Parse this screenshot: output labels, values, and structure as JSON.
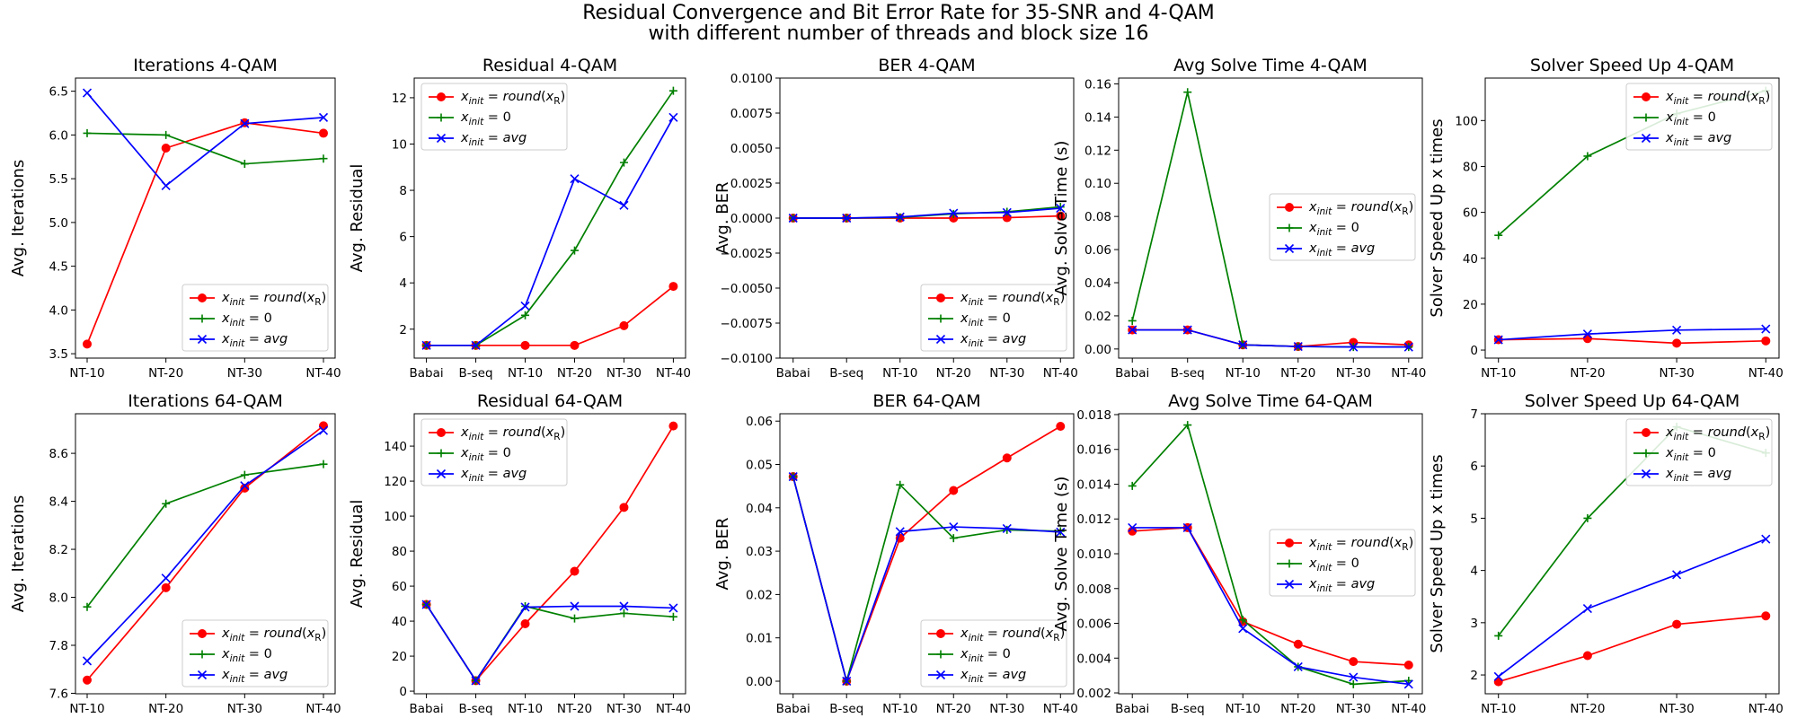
{
  "figure": {
    "title_line1": "Residual Convergence and Bit Error Rate for 35-SNR and 4-QAM",
    "title_line2": "with different number of threads and block size 16"
  },
  "colors": {
    "red": "#ff0000",
    "green": "#008000",
    "blue": "#0000ff"
  },
  "legend_labels": {
    "round": "x_init = round(x_R)",
    "zero": "x_init = 0",
    "avg": "x_init = avg"
  },
  "chart_data": [
    {
      "type": "line",
      "title": "Iterations 4-QAM",
      "ylabel": "Avg. Iterations",
      "xlabel": "",
      "categories": [
        "NT-10",
        "NT-20",
        "NT-30",
        "NT-40"
      ],
      "ylim": [
        3.45,
        6.65
      ],
      "yticks": [
        3.5,
        4.0,
        4.5,
        5.0,
        5.5,
        6.0,
        6.5
      ],
      "ytick_labels": [
        "3.5",
        "4.0",
        "4.5",
        "5.0",
        "5.5",
        "6.0",
        "6.5"
      ],
      "legend": "lower-right",
      "series": [
        {
          "key": "round",
          "values": [
            3.61,
            5.85,
            6.14,
            6.02
          ]
        },
        {
          "key": "zero",
          "values": [
            6.02,
            6.0,
            5.67,
            5.73
          ]
        },
        {
          "key": "avg",
          "values": [
            6.48,
            5.42,
            6.13,
            6.2
          ]
        }
      ]
    },
    {
      "type": "line",
      "title": "Residual 4-QAM",
      "ylabel": "Avg. Residual",
      "xlabel": "",
      "categories": [
        "Babai",
        "B-seq",
        "NT-10",
        "NT-20",
        "NT-30",
        "NT-40"
      ],
      "ylim": [
        0.75,
        12.85
      ],
      "yticks": [
        2,
        4,
        6,
        8,
        10,
        12
      ],
      "ytick_labels": [
        "2",
        "4",
        "6",
        "8",
        "10",
        "12"
      ],
      "legend": "upper-left",
      "series": [
        {
          "key": "round",
          "values": [
            1.3,
            1.3,
            1.3,
            1.3,
            2.15,
            3.85
          ]
        },
        {
          "key": "zero",
          "values": [
            1.3,
            1.3,
            2.6,
            5.4,
            9.2,
            12.3
          ]
        },
        {
          "key": "avg",
          "values": [
            1.3,
            1.3,
            3.0,
            8.5,
            7.35,
            11.15
          ]
        }
      ]
    },
    {
      "type": "line",
      "title": "BER 4-QAM",
      "ylabel": "Avg. BER",
      "xlabel": "",
      "categories": [
        "Babai",
        "B-seq",
        "NT-10",
        "NT-20",
        "NT-30",
        "NT-40"
      ],
      "ylim": [
        -0.01,
        0.01
      ],
      "yticks": [
        -0.01,
        -0.0075,
        -0.005,
        -0.0025,
        0.0,
        0.0025,
        0.005,
        0.0075,
        0.01
      ],
      "ytick_labels": [
        "−0.0100",
        "−0.0075",
        "−0.0050",
        "−0.0025",
        "0.0000",
        "0.0025",
        "0.0050",
        "0.0075",
        "0.0100"
      ],
      "legend": "lower-right",
      "series": [
        {
          "key": "round",
          "values": [
            0.0,
            0.0,
            0.0,
            0.0,
            3e-05,
            0.00015
          ]
        },
        {
          "key": "zero",
          "values": [
            0.0,
            0.0,
            5e-05,
            0.0003,
            0.00045,
            0.0008
          ]
        },
        {
          "key": "avg",
          "values": [
            0.0,
            0.0,
            8e-05,
            0.00035,
            0.0004,
            0.0007
          ]
        }
      ]
    },
    {
      "type": "line",
      "title": "Avg Solve Time 4-QAM",
      "ylabel": "Avg. Solve Time (s)",
      "xlabel": "",
      "categories": [
        "Babai",
        "B-seq",
        "NT-10",
        "NT-20",
        "NT-30",
        "NT-40"
      ],
      "ylim": [
        -0.0055,
        0.1635
      ],
      "yticks": [
        0.0,
        0.02,
        0.04,
        0.06,
        0.08,
        0.1,
        0.12,
        0.14,
        0.16
      ],
      "ytick_labels": [
        "0.00",
        "0.02",
        "0.04",
        "0.06",
        "0.08",
        "0.10",
        "0.12",
        "0.14",
        "0.16"
      ],
      "legend": "center-right",
      "series": [
        {
          "key": "round",
          "values": [
            0.0115,
            0.0115,
            0.0025,
            0.0015,
            0.004,
            0.0025
          ]
        },
        {
          "key": "zero",
          "values": [
            0.017,
            0.155,
            0.0025,
            0.0015,
            0.0012,
            0.0012
          ]
        },
        {
          "key": "avg",
          "values": [
            0.0115,
            0.0115,
            0.0025,
            0.0015,
            0.0012,
            0.0012
          ]
        }
      ]
    },
    {
      "type": "line",
      "title": "Solver Speed Up 4-QAM",
      "ylabel": "Solver Speed Up x times",
      "xlabel": "",
      "categories": [
        "NT-10",
        "NT-20",
        "NT-30",
        "NT-40"
      ],
      "ylim": [
        -3.5,
        118.5
      ],
      "yticks": [
        0,
        20,
        40,
        60,
        80,
        100
      ],
      "ytick_labels": [
        "0",
        "20",
        "40",
        "60",
        "80",
        "100"
      ],
      "legend": "upper-right",
      "series": [
        {
          "key": "round",
          "values": [
            4.5,
            5.0,
            3.0,
            4.0
          ]
        },
        {
          "key": "zero",
          "values": [
            50,
            84.5,
            103,
            113
          ]
        },
        {
          "key": "avg",
          "values": [
            4.5,
            7.0,
            8.7,
            9.2
          ]
        }
      ]
    },
    {
      "type": "line",
      "title": "Iterations 64-QAM",
      "ylabel": "Avg. Iterations",
      "xlabel": "",
      "categories": [
        "NT-10",
        "NT-20",
        "NT-30",
        "NT-40"
      ],
      "ylim": [
        7.598,
        8.765
      ],
      "yticks": [
        7.6,
        7.8,
        8.0,
        8.2,
        8.4,
        8.6
      ],
      "ytick_labels": [
        "7.6",
        "7.8",
        "8.0",
        "8.2",
        "8.4",
        "8.6"
      ],
      "legend": "lower-right",
      "series": [
        {
          "key": "round",
          "values": [
            7.655,
            8.04,
            8.455,
            8.715
          ]
        },
        {
          "key": "zero",
          "values": [
            7.96,
            8.39,
            8.51,
            8.555
          ]
        },
        {
          "key": "avg",
          "values": [
            7.735,
            8.08,
            8.465,
            8.695
          ]
        }
      ]
    },
    {
      "type": "line",
      "title": "Residual 64-QAM",
      "ylabel": "Avg. Residual",
      "xlabel": "",
      "categories": [
        "Babai",
        "B-seq",
        "NT-10",
        "NT-20",
        "NT-30",
        "NT-40"
      ],
      "ylim": [
        -1.5,
        158.5
      ],
      "yticks": [
        0,
        20,
        40,
        60,
        80,
        100,
        120,
        140
      ],
      "ytick_labels": [
        "0",
        "20",
        "40",
        "60",
        "80",
        "100",
        "120",
        "140"
      ],
      "legend": "upper-left",
      "series": [
        {
          "key": "round",
          "values": [
            49.5,
            6,
            38.5,
            68.5,
            105,
            151.5
          ]
        },
        {
          "key": "zero",
          "values": [
            49.5,
            6,
            48.5,
            41.5,
            44.5,
            42.5
          ]
        },
        {
          "key": "avg",
          "values": [
            49.5,
            6,
            48,
            48.5,
            48.5,
            47.5
          ]
        }
      ]
    },
    {
      "type": "line",
      "title": "BER 64-QAM",
      "ylabel": "Avg. BER",
      "xlabel": "",
      "categories": [
        "Babai",
        "B-seq",
        "NT-10",
        "NT-20",
        "NT-30",
        "NT-40"
      ],
      "ylim": [
        -0.0029,
        0.0617
      ],
      "yticks": [
        0.0,
        0.01,
        0.02,
        0.03,
        0.04,
        0.05,
        0.06
      ],
      "ytick_labels": [
        "0.00",
        "0.01",
        "0.02",
        "0.03",
        "0.04",
        "0.05",
        "0.06"
      ],
      "legend": "lower-right",
      "series": [
        {
          "key": "round",
          "values": [
            0.0472,
            0.0,
            0.033,
            0.044,
            0.0515,
            0.0588
          ]
        },
        {
          "key": "zero",
          "values": [
            0.0472,
            0.0,
            0.0453,
            0.033,
            0.0349,
            0.0346
          ]
        },
        {
          "key": "avg",
          "values": [
            0.0472,
            0.0,
            0.0345,
            0.0356,
            0.0352,
            0.0344
          ]
        }
      ]
    },
    {
      "type": "line",
      "title": "Avg Solve Time 64-QAM",
      "ylabel": "Avg. Solve Time (s)",
      "xlabel": "",
      "categories": [
        "Babai",
        "B-seq",
        "NT-10",
        "NT-20",
        "NT-30",
        "NT-40"
      ],
      "ylim": [
        0.00195,
        0.01805
      ],
      "yticks": [
        0.002,
        0.004,
        0.006,
        0.008,
        0.01,
        0.012,
        0.014,
        0.016,
        0.018
      ],
      "ytick_labels": [
        "0.002",
        "0.004",
        "0.006",
        "0.008",
        "0.010",
        "0.012",
        "0.014",
        "0.016",
        "0.018"
      ],
      "legend": "center-right",
      "series": [
        {
          "key": "round",
          "values": [
            0.0113,
            0.0115,
            0.0061,
            0.0048,
            0.0038,
            0.0036
          ]
        },
        {
          "key": "zero",
          "values": [
            0.0139,
            0.0174,
            0.0062,
            0.0035,
            0.0025,
            0.0027
          ]
        },
        {
          "key": "avg",
          "values": [
            0.0115,
            0.0115,
            0.0057,
            0.0035,
            0.0029,
            0.0025
          ]
        }
      ]
    },
    {
      "type": "line",
      "title": "Solver Speed Up 64-QAM",
      "ylabel": "Solver Speed Up x times",
      "xlabel": "",
      "categories": [
        "NT-10",
        "NT-20",
        "NT-30",
        "NT-40"
      ],
      "ylim": [
        1.64,
        7.0
      ],
      "yticks": [
        2,
        3,
        4,
        5,
        6,
        7
      ],
      "ytick_labels": [
        "2",
        "3",
        "4",
        "5",
        "6",
        "7"
      ],
      "legend": "upper-right",
      "series": [
        {
          "key": "round",
          "values": [
            1.87,
            2.37,
            2.97,
            3.13
          ]
        },
        {
          "key": "zero",
          "values": [
            2.75,
            5.0,
            6.75,
            6.25
          ]
        },
        {
          "key": "avg",
          "values": [
            1.97,
            3.27,
            3.92,
            4.6
          ]
        }
      ]
    }
  ]
}
